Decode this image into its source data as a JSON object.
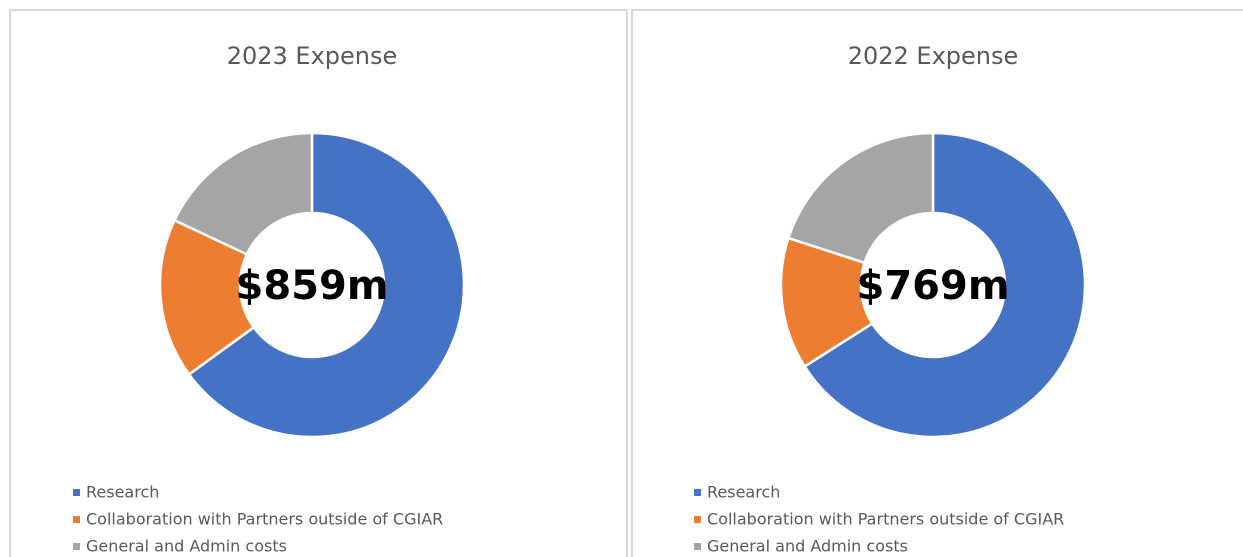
{
  "chart_data": [
    {
      "type": "donut",
      "title": "2023 Expense",
      "center_label": "$859m",
      "categories": [
        "Research",
        "Collaboration with Partners outside of CGIAR",
        "General and Admin costs"
      ],
      "values": [
        65,
        17,
        18
      ],
      "colors": [
        "#4472c4",
        "#ed7d31",
        "#a5a5a5"
      ]
    },
    {
      "type": "donut",
      "title": "2022 Expense",
      "center_label": "$769m",
      "categories": [
        "Research",
        "Collaboration with Partners outside of CGIAR",
        "General and Admin costs"
      ],
      "values": [
        66,
        14,
        20
      ],
      "colors": [
        "#4472c4",
        "#ed7d31",
        "#a5a5a5"
      ]
    }
  ]
}
